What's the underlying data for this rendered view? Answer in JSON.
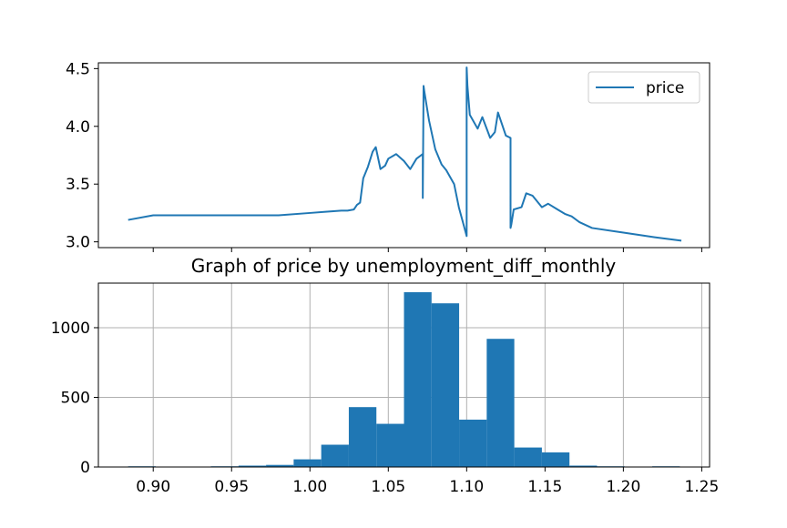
{
  "colors": {
    "series": "#1f77b4",
    "grid": "#b0b0b0",
    "axis": "#000000"
  },
  "chart_data": [
    {
      "type": "line",
      "title": "",
      "xlabel": "",
      "ylabel": "",
      "xlim": [
        0.865,
        1.255
      ],
      "ylim": [
        2.95,
        4.55
      ],
      "yticks": [
        3.0,
        3.5,
        4.0,
        4.5
      ],
      "ytick_labels": [
        "3.0",
        "3.5",
        "4.0",
        "4.5"
      ],
      "legend": {
        "position": "upper right",
        "entries": [
          "price"
        ]
      },
      "grid": false,
      "series": [
        {
          "name": "price",
          "x": [
            0.884,
            0.9,
            0.92,
            0.94,
            0.96,
            0.98,
            1.0,
            1.01,
            1.02,
            1.024,
            1.028,
            1.03,
            1.032,
            1.034,
            1.037,
            1.04,
            1.042,
            1.045,
            1.048,
            1.05,
            1.055,
            1.06,
            1.064,
            1.068,
            1.072,
            1.072,
            1.0725,
            1.073,
            1.076,
            1.08,
            1.084,
            1.087,
            1.092,
            1.095,
            1.098,
            1.1,
            1.1,
            1.1005,
            1.102,
            1.107,
            1.11,
            1.115,
            1.118,
            1.12,
            1.125,
            1.128,
            1.128,
            1.1285,
            1.13,
            1.135,
            1.138,
            1.142,
            1.148,
            1.152,
            1.158,
            1.163,
            1.167,
            1.172,
            1.18,
            1.2,
            1.22,
            1.237
          ],
          "values": [
            3.19,
            3.23,
            3.23,
            3.23,
            3.23,
            3.23,
            3.25,
            3.26,
            3.27,
            3.27,
            3.28,
            3.32,
            3.34,
            3.55,
            3.65,
            3.78,
            3.82,
            3.63,
            3.66,
            3.72,
            3.76,
            3.7,
            3.63,
            3.72,
            3.76,
            3.38,
            4.35,
            4.3,
            4.05,
            3.8,
            3.67,
            3.62,
            3.5,
            3.3,
            3.15,
            3.05,
            4.51,
            4.35,
            4.1,
            3.98,
            4.08,
            3.9,
            3.95,
            4.12,
            3.92,
            3.9,
            3.12,
            3.15,
            3.28,
            3.3,
            3.42,
            3.4,
            3.3,
            3.33,
            3.28,
            3.24,
            3.22,
            3.17,
            3.12,
            3.08,
            3.04,
            3.01
          ]
        }
      ]
    },
    {
      "type": "bar",
      "title": "Graph of price by unemployment_diff_monthly",
      "xlabel": "",
      "ylabel": "",
      "xlim": [
        0.865,
        1.255
      ],
      "ylim": [
        0,
        1320
      ],
      "xticks": [
        0.9,
        0.95,
        1.0,
        1.05,
        1.1,
        1.15,
        1.2,
        1.25
      ],
      "xtick_labels": [
        "0.90",
        "0.95",
        "1.00",
        "1.05",
        "1.10",
        "1.15",
        "1.20",
        "1.25"
      ],
      "yticks": [
        0,
        500,
        1000
      ],
      "ytick_labels": [
        "0",
        "500",
        "1000"
      ],
      "grid": true,
      "bin_edges": [
        0.884,
        0.9016,
        0.9192,
        0.9368,
        0.9544,
        0.972,
        0.9896,
        1.0072,
        1.0248,
        1.0424,
        1.06,
        1.0776,
        1.0952,
        1.1128,
        1.1304,
        1.148,
        1.1656,
        1.1832,
        1.2008,
        1.2184,
        1.236
      ],
      "values": [
        5,
        3,
        3,
        5,
        10,
        15,
        55,
        160,
        430,
        310,
        1255,
        1175,
        340,
        920,
        140,
        105,
        10,
        5,
        3,
        5
      ]
    }
  ]
}
